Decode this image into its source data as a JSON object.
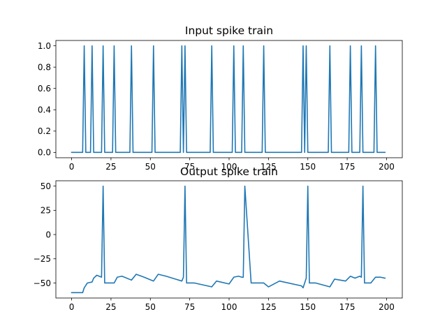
{
  "chart_data": [
    {
      "type": "line",
      "title": "Input spike train",
      "xlabel": "",
      "ylabel": "",
      "xlim": [
        -10,
        210
      ],
      "ylim": [
        -0.05,
        1.05
      ],
      "xticks": [
        0,
        25,
        50,
        75,
        100,
        125,
        150,
        175,
        200
      ],
      "yticks": [
        0.0,
        0.2,
        0.4,
        0.6,
        0.8,
        1.0
      ],
      "xtick_labels": [
        "0",
        "25",
        "50",
        "75",
        "100",
        "125",
        "150",
        "175",
        "200"
      ],
      "ytick_labels": [
        "0.0",
        "0.2",
        "0.4",
        "0.6",
        "0.8",
        "1.0"
      ],
      "grid": false,
      "color": "#1f77b4",
      "x_range": [
        0,
        199
      ],
      "baseline": 0,
      "spike_times": [
        8,
        13,
        20,
        27,
        38,
        52,
        70,
        72,
        89,
        103,
        109,
        122,
        147,
        149,
        164,
        177,
        184,
        193
      ],
      "spike_value": 1
    },
    {
      "type": "line",
      "title": "Output spike train",
      "xlabel": "",
      "ylabel": "",
      "xlim": [
        -10,
        210
      ],
      "ylim": [
        -65.5,
        55.5
      ],
      "xticks": [
        0,
        25,
        50,
        75,
        100,
        125,
        150,
        175,
        200
      ],
      "yticks": [
        -50,
        -25,
        0,
        25,
        50
      ],
      "xtick_labels": [
        "0",
        "25",
        "50",
        "75",
        "100",
        "125",
        "150",
        "175",
        "200"
      ],
      "ytick_labels": [
        "−50",
        "−25",
        "0",
        "25",
        "50"
      ],
      "grid": false,
      "color": "#1f77b4",
      "x": [
        0,
        7,
        8,
        10,
        13,
        14,
        16,
        19,
        20,
        21,
        25,
        27,
        29,
        32,
        38,
        41,
        46,
        52,
        55,
        60,
        70,
        71,
        72,
        73,
        78,
        89,
        92,
        100,
        103,
        106,
        108,
        109,
        110,
        114,
        122,
        125,
        132,
        146,
        147,
        149,
        150,
        151,
        155,
        164,
        167,
        174,
        177,
        180,
        183,
        184,
        185,
        186,
        190,
        193,
        196,
        199
      ],
      "y": [
        -60,
        -60,
        -55,
        -50,
        -49,
        -45,
        -42,
        -44,
        50,
        -50,
        -50,
        -50,
        -44,
        -43,
        -47,
        -41,
        -44,
        -48,
        -41,
        -43,
        -48,
        -44,
        50,
        -50,
        -50,
        -54,
        -48,
        -51,
        -44,
        -43,
        -44,
        -44,
        50,
        -50,
        -50,
        -54,
        -48,
        -53,
        -55,
        -45,
        50,
        -50,
        -50,
        -54,
        -46,
        -48,
        -43,
        -45,
        -43,
        -44,
        50,
        -50,
        -50,
        -44,
        -44,
        -45
      ]
    }
  ]
}
